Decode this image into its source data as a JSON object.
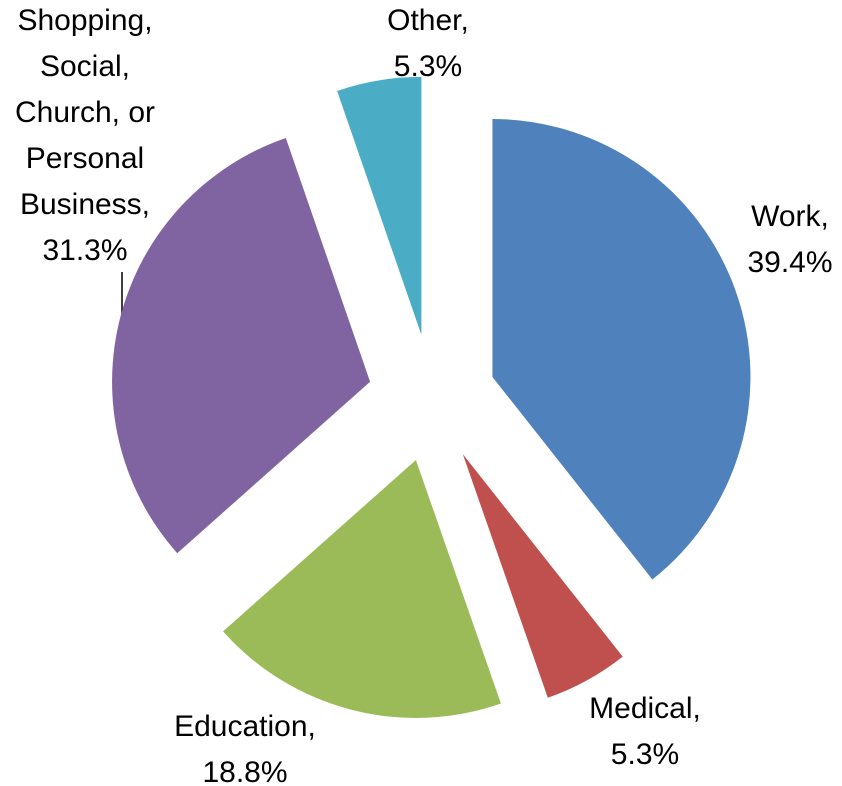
{
  "chart_data": {
    "type": "pie",
    "categories": [
      "Work,",
      "Medical,",
      "Education,",
      "Shopping, Social, Church, or Personal Business,",
      "Other,"
    ],
    "values": [
      39.4,
      5.3,
      18.8,
      31.3,
      5.3
    ],
    "value_labels": [
      "39.4%",
      "5.3%",
      "18.8%",
      "31.3%",
      "5.3%"
    ],
    "colors": [
      "#4f81bd",
      "#c0504d",
      "#9bbb59",
      "#8064a2",
      "#4bacc6"
    ],
    "exploded": true
  }
}
